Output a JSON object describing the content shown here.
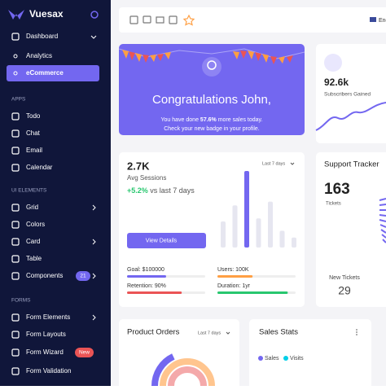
{
  "sidebar": {
    "brand": "Vuesax",
    "items": [
      {
        "label": "Dashboard"
      },
      {
        "label": "Analytics"
      },
      {
        "label": "eCommerce"
      },
      {
        "section": "APPS"
      },
      {
        "label": "Todo"
      },
      {
        "label": "Chat"
      },
      {
        "label": "Email"
      },
      {
        "label": "Calendar"
      },
      {
        "section": "UI ELEMENTS"
      },
      {
        "label": "Grid"
      },
      {
        "label": "Colors"
      },
      {
        "label": "Card"
      },
      {
        "label": "Table"
      },
      {
        "label": "Components",
        "badge": "21"
      },
      {
        "section": "FORMS"
      },
      {
        "label": "Form Elements"
      },
      {
        "label": "Form Layouts"
      },
      {
        "label": "Form Wizard",
        "badge": "New"
      },
      {
        "label": "Form Validation"
      }
    ]
  },
  "topbar": {
    "language": "Eng"
  },
  "congrats": {
    "title": "Congratulations John,",
    "pre": "You have done ",
    "highlight": "57.6%",
    "post": " more sales today.",
    "line2": "Check your new badge in your profile."
  },
  "subscribers": {
    "value": "92.6k",
    "label": "Subscribers Gained"
  },
  "sessions": {
    "value": "2.7K",
    "label": "Avg Sessions",
    "change": "+5.2%",
    "change_text": " vs last 7 days",
    "period": "Last 7 days",
    "button": "View Details",
    "bars": [
      34,
      55,
      100,
      38,
      60,
      22,
      13
    ],
    "ylim": [
      0,
      100
    ],
    "goals": [
      {
        "label": "Goal: $100000",
        "value": 50,
        "color": "#7367f0"
      },
      {
        "label": "Users: 100K",
        "value": 45,
        "color": "#ff9f43"
      },
      {
        "label": "Retention: 90%",
        "value": 70,
        "color": "#ea5455"
      },
      {
        "label": "Duration: 1yr",
        "value": 90,
        "color": "#28c76f"
      }
    ]
  },
  "support": {
    "title": "Support Tracker",
    "value": "163",
    "label": "Tickets",
    "new_label": "New Tickets",
    "new_value": "29"
  },
  "orders": {
    "title": "Product Orders",
    "period": "Last 7 days"
  },
  "sales": {
    "title": "Sales Stats",
    "legend": [
      "Sales",
      "Visits"
    ]
  }
}
